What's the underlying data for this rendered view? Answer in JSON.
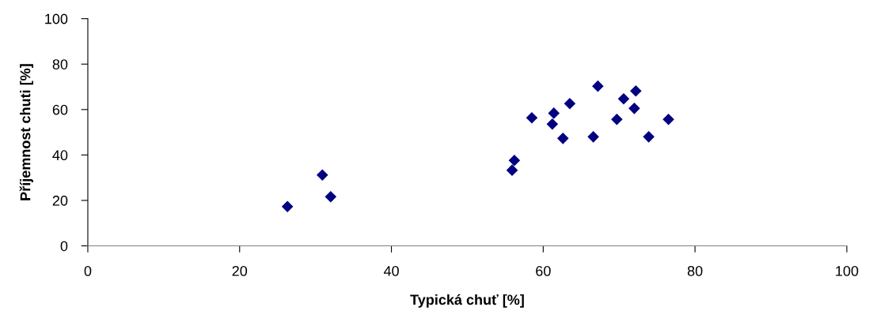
{
  "chart_data": {
    "type": "scatter",
    "xlabel": "Typická chuť [%]",
    "ylabel": "Příjemnost chuti [%]",
    "x": [
      26.3,
      30.9,
      32.0,
      55.9,
      56.2,
      58.5,
      61.2,
      61.4,
      62.6,
      63.5,
      66.6,
      67.2,
      69.7,
      70.6,
      72.0,
      72.2,
      73.9,
      76.5
    ],
    "series": [
      {
        "color": "#000080",
        "values": [
          17.3,
          31.2,
          21.6,
          33.3,
          37.6,
          56.4,
          53.6,
          58.4,
          47.3,
          62.6,
          48.0,
          70.3,
          55.7,
          64.7,
          60.5,
          68.2,
          48.0,
          55.7
        ]
      }
    ],
    "xlim": [
      0,
      100
    ],
    "ylim": [
      0,
      100
    ],
    "xticks": [
      0,
      20,
      40,
      60,
      80,
      100
    ],
    "yticks": [
      0,
      20,
      40,
      60,
      80,
      100
    ],
    "marker": "diamond",
    "grid": false
  }
}
